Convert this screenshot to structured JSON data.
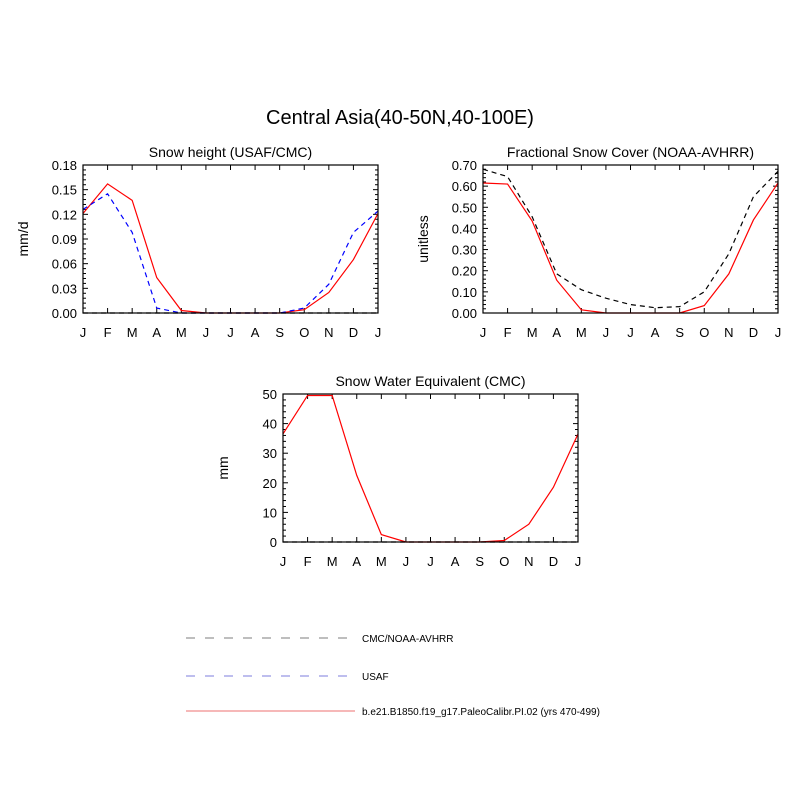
{
  "figure": {
    "title": "Central Asia(40-50N,40-100E)"
  },
  "colors": {
    "model": "#ff0000",
    "usaf": "#0000ff",
    "obs": "#000000",
    "legend_model": "#f4a0a0",
    "legend_usaf": "#a8a8e8",
    "legend_obs": "#a8a8a8"
  },
  "legend": {
    "items": [
      {
        "label": "CMC/NOAA-AVHRR",
        "style": "dashed",
        "color_key": "legend_obs"
      },
      {
        "label": "USAF",
        "style": "dashed",
        "color_key": "legend_usaf"
      },
      {
        "label": "b.e21.B1850.f19_g17.PaleoCalibr.PI.02 (yrs 470-499)",
        "style": "solid",
        "color_key": "legend_model"
      }
    ]
  },
  "chart_data": [
    {
      "type": "line",
      "title": "Snow height (USAF/CMC)",
      "ylabel": "mm/d",
      "xlabel": "",
      "categories": [
        "J",
        "F",
        "M",
        "A",
        "M",
        "J",
        "J",
        "A",
        "S",
        "O",
        "N",
        "D",
        "J"
      ],
      "ylim": [
        0,
        0.18
      ],
      "yticks": [
        "0.00",
        "0.03",
        "0.06",
        "0.09",
        "0.12",
        "0.15",
        "0.18"
      ],
      "grid": false,
      "series": [
        {
          "name": "b.e21.B1850.f19_g17.PaleoCalibr.PI.02 (yrs 470-499)",
          "style": "solid",
          "color_key": "model",
          "values": [
            0.121,
            0.157,
            0.137,
            0.043,
            0.003,
            0.0,
            0.0,
            0.0,
            0.0,
            0.004,
            0.025,
            0.065,
            0.121
          ]
        },
        {
          "name": "USAF",
          "style": "dashed",
          "color_key": "usaf",
          "values": [
            0.126,
            0.145,
            0.098,
            0.006,
            0.0,
            0.0,
            0.0,
            0.0,
            0.0,
            0.006,
            0.035,
            0.098,
            0.124
          ]
        },
        {
          "name": "CMC/NOAA-AVHRR",
          "style": "dashed",
          "color_key": "obs",
          "values": [
            0.0,
            0.0,
            0.0,
            0.0,
            0.0,
            0.0,
            0.0,
            0.0,
            0.0,
            0.0,
            0.0,
            0.0,
            0.0
          ]
        }
      ]
    },
    {
      "type": "line",
      "title": "Fractional Snow Cover (NOAA-AVHRR)",
      "ylabel": "unitless",
      "xlabel": "",
      "categories": [
        "J",
        "F",
        "M",
        "A",
        "M",
        "J",
        "J",
        "A",
        "S",
        "O",
        "N",
        "D",
        "J"
      ],
      "ylim": [
        0,
        0.7
      ],
      "yticks": [
        "0.00",
        "0.10",
        "0.20",
        "0.30",
        "0.40",
        "0.50",
        "0.60",
        "0.70"
      ],
      "grid": false,
      "series": [
        {
          "name": "b.e21.B1850.f19_g17.PaleoCalibr.PI.02 (yrs 470-499)",
          "style": "solid",
          "color_key": "model",
          "values": [
            0.615,
            0.61,
            0.435,
            0.155,
            0.015,
            0.0,
            0.0,
            0.0,
            0.0,
            0.035,
            0.185,
            0.44,
            0.615
          ]
        },
        {
          "name": "CMC/NOAA-AVHRR",
          "style": "dashed",
          "color_key": "obs",
          "values": [
            0.68,
            0.645,
            0.455,
            0.185,
            0.11,
            0.07,
            0.04,
            0.025,
            0.03,
            0.1,
            0.28,
            0.55,
            0.67
          ]
        }
      ]
    },
    {
      "type": "line",
      "title": "Snow Water Equivalent (CMC)",
      "ylabel": "mm",
      "xlabel": "",
      "categories": [
        "J",
        "F",
        "M",
        "A",
        "M",
        "J",
        "J",
        "A",
        "S",
        "O",
        "N",
        "D",
        "J"
      ],
      "ylim": [
        0,
        50
      ],
      "yticks": [
        "0",
        "10",
        "20",
        "30",
        "40",
        "50"
      ],
      "grid": false,
      "series": [
        {
          "name": "b.e21.B1850.f19_g17.PaleoCalibr.PI.02 (yrs 470-499)",
          "style": "solid",
          "color_key": "model",
          "values": [
            36.5,
            49.5,
            49.5,
            22.5,
            2.5,
            0.0,
            0.0,
            0.0,
            0.0,
            0.5,
            6.0,
            18.5,
            36.5
          ]
        },
        {
          "name": "CMC/NOAA-AVHRR",
          "style": "dashed",
          "color_key": "obs",
          "values": [
            0.0,
            0.0,
            0.0,
            0.0,
            0.0,
            0.0,
            0.0,
            0.0,
            0.0,
            0.0,
            0.0,
            0.0,
            0.0
          ]
        }
      ]
    }
  ]
}
